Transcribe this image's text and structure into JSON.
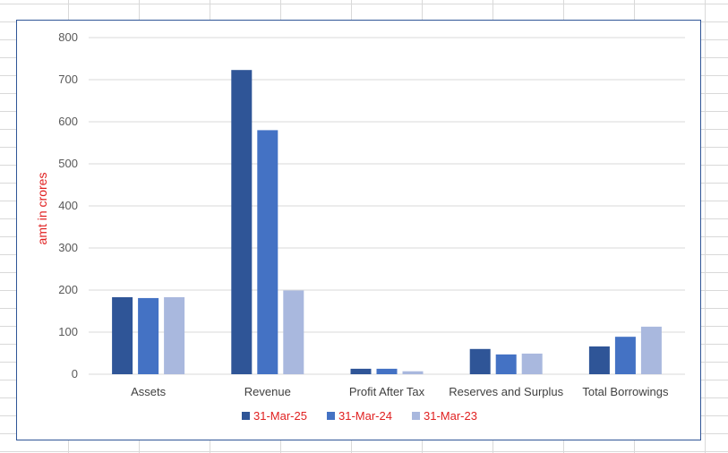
{
  "chart_data": {
    "type": "bar",
    "title": "",
    "xlabel": "",
    "ylabel": "amt in crores",
    "ylim": [
      0,
      800
    ],
    "yticks": [
      0,
      100,
      200,
      300,
      400,
      500,
      600,
      700,
      800
    ],
    "categories": [
      "Assets",
      "Revenue",
      "Profit After Tax",
      "Reserves and Surplus",
      "Total Borrowings"
    ],
    "series": [
      {
        "name": "31-Mar-25",
        "color": "#2f5597",
        "values": [
          183,
          723,
          13,
          60,
          66
        ]
      },
      {
        "name": "31-Mar-24",
        "color": "#4472c4",
        "values": [
          181,
          580,
          13,
          47,
          89
        ]
      },
      {
        "name": "31-Mar-23",
        "color": "#a9b8de",
        "values": [
          183,
          199,
          7,
          49,
          113
        ]
      }
    ],
    "grid": true,
    "legend": "bottom"
  }
}
